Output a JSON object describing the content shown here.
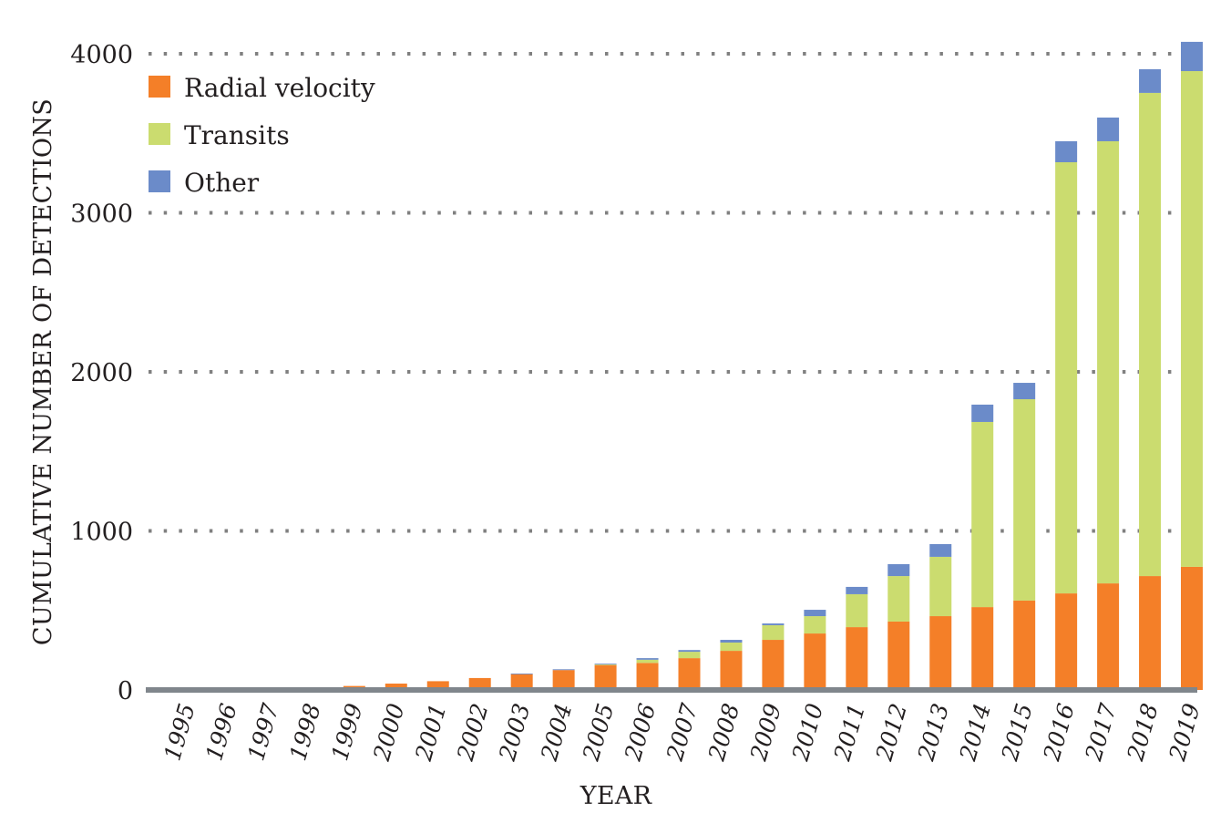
{
  "chart_data": {
    "type": "bar",
    "stacked": true,
    "title": "",
    "xlabel": "YEAR",
    "ylabel": "CUMULATIVE NUMBER OF DETECTIONS",
    "ylim": [
      0,
      4000
    ],
    "yticks": [
      0,
      1000,
      2000,
      3000,
      4000
    ],
    "ytick_labels": [
      "0",
      "1000",
      "2000",
      "3000",
      "4000"
    ],
    "grid": "horizontal dotted",
    "legend_position": "top-left",
    "categories": [
      "1995",
      "1996",
      "1997",
      "1998",
      "1999",
      "2000",
      "2001",
      "2002",
      "2003",
      "2004",
      "2005",
      "2006",
      "2007",
      "2008",
      "2009",
      "2010",
      "2011",
      "2012",
      "2013",
      "2014",
      "2015",
      "2016",
      "2017",
      "2018",
      "2019"
    ],
    "series": [
      {
        "name": "Radial velocity",
        "color": "#f47f28",
        "values": [
          2,
          4,
          6,
          8,
          25,
          40,
          55,
          75,
          100,
          125,
          158,
          170,
          200,
          246,
          315,
          355,
          395,
          430,
          464,
          521,
          562,
          607,
          670,
          716,
          774
        ]
      },
      {
        "name": "Transits",
        "color": "#cbdc6f",
        "values": [
          0,
          0,
          0,
          0,
          0,
          0,
          0,
          0,
          0,
          0,
          2,
          20,
          40,
          52,
          92,
          109,
          207,
          286,
          373,
          1164,
          1266,
          2711,
          2780,
          3038,
          3117
        ]
      },
      {
        "name": "Other",
        "color": "#6b8bc9",
        "values": [
          0,
          0,
          0,
          0,
          0,
          0,
          0,
          0,
          3,
          5,
          5,
          10,
          11,
          17,
          11,
          40,
          46,
          75,
          80,
          109,
          103,
          132,
          149,
          149,
          184
        ]
      }
    ]
  }
}
